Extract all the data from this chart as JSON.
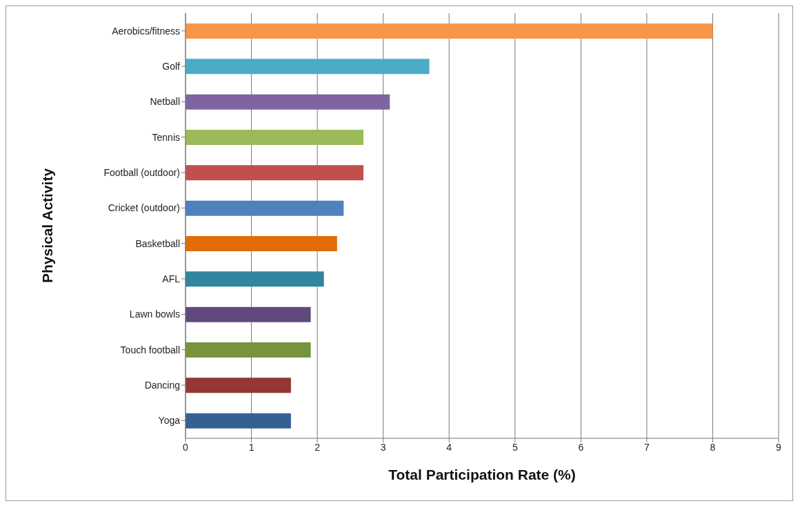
{
  "chart_data": {
    "type": "bar",
    "orientation": "horizontal",
    "xlabel": "Total Participation Rate (%)",
    "ylabel": "Physical Activity",
    "categories": [
      "Aerobics/fitness",
      "Golf",
      "Netball",
      "Tennis",
      "Football (outdoor)",
      "Cricket (outdoor)",
      "Basketball",
      "AFL",
      "Lawn bowls",
      "Touch football",
      "Dancing",
      "Yoga"
    ],
    "values": [
      8.0,
      3.7,
      3.1,
      2.7,
      2.7,
      2.4,
      2.3,
      2.1,
      1.9,
      1.9,
      1.6,
      1.6
    ],
    "colors": [
      "#f79646",
      "#4bacc6",
      "#8064a2",
      "#9bbb59",
      "#c0504d",
      "#4f81bd",
      "#e36c09",
      "#31859c",
      "#604a7b",
      "#77933c",
      "#953735",
      "#376092"
    ],
    "xlim": [
      0,
      9
    ],
    "xticks": [
      0,
      1,
      2,
      3,
      4,
      5,
      6,
      7,
      8,
      9
    ],
    "grid": "x"
  }
}
